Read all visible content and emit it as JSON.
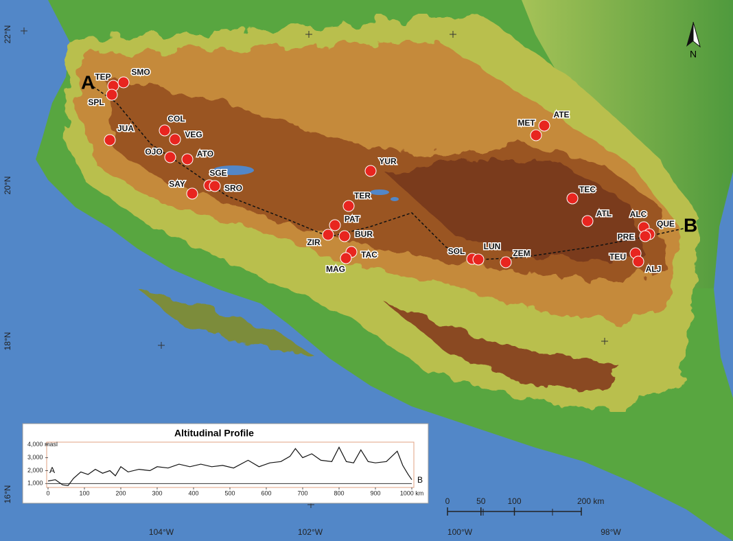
{
  "map": {
    "north_label": "N",
    "transect_start": "A",
    "transect_end": "B",
    "latitude_labels": [
      "22°N",
      "20°N",
      "18°N",
      "16°N"
    ],
    "longitude_labels": [
      "104°W",
      "102°W",
      "100°W",
      "98°W"
    ],
    "sites": [
      "TEP",
      "SMO",
      "SPL",
      "COL",
      "VEG",
      "JUA",
      "OJO",
      "ATO",
      "SGE",
      "SAY",
      "SRO",
      "YUR",
      "TER",
      "PAT",
      "ZIR",
      "BUR",
      "TAC",
      "MAG",
      "SOL",
      "LUN",
      "ZEM",
      "MET",
      "ATE",
      "TEC",
      "ATL",
      "ALC",
      "QUE",
      "PRE",
      "TEU",
      "ALJ"
    ],
    "scale_bar": {
      "xlim": [
        0,
        200
      ],
      "ticks": [
        0,
        50,
        100,
        {
          "value": 200,
          "label": "200 km"
        }
      ]
    }
  },
  "inset": {
    "title": "Altitudinal Profile",
    "start_label": "A",
    "end_label": "B",
    "xlim": [
      0,
      1000
    ],
    "xticks": [
      0,
      100,
      200,
      300,
      400,
      500,
      600,
      700,
      800,
      900,
      {
        "value": 1000,
        "label": "1000 km"
      }
    ],
    "ylim": [
      700,
      4200
    ],
    "yticks": [
      {
        "value": 1000,
        "label": "1,000"
      },
      {
        "value": 2000,
        "label": "2,000"
      },
      {
        "value": 3000,
        "label": "3,000"
      },
      {
        "value": 4000,
        "label": "4,000 masl"
      }
    ],
    "x": [
      0,
      20,
      40,
      55,
      70,
      90,
      110,
      130,
      150,
      170,
      185,
      200,
      220,
      250,
      280,
      300,
      330,
      360,
      390,
      420,
      450,
      480,
      510,
      550,
      580,
      610,
      640,
      665,
      680,
      700,
      725,
      750,
      780,
      800,
      820,
      840,
      860,
      880,
      900,
      930,
      960,
      975,
      990,
      1000
    ],
    "values": [
      1200,
      1300,
      900,
      850,
      1400,
      1900,
      1700,
      2100,
      1800,
      2000,
      1600,
      2300,
      1900,
      2100,
      2000,
      2300,
      2200,
      2500,
      2300,
      2500,
      2300,
      2400,
      2200,
      2800,
      2300,
      2600,
      2700,
      3100,
      3700,
      3000,
      3300,
      2800,
      2700,
      3800,
      2700,
      2600,
      3600,
      2700,
      2600,
      2700,
      3500,
      2400,
      1700,
      1300
    ]
  }
}
